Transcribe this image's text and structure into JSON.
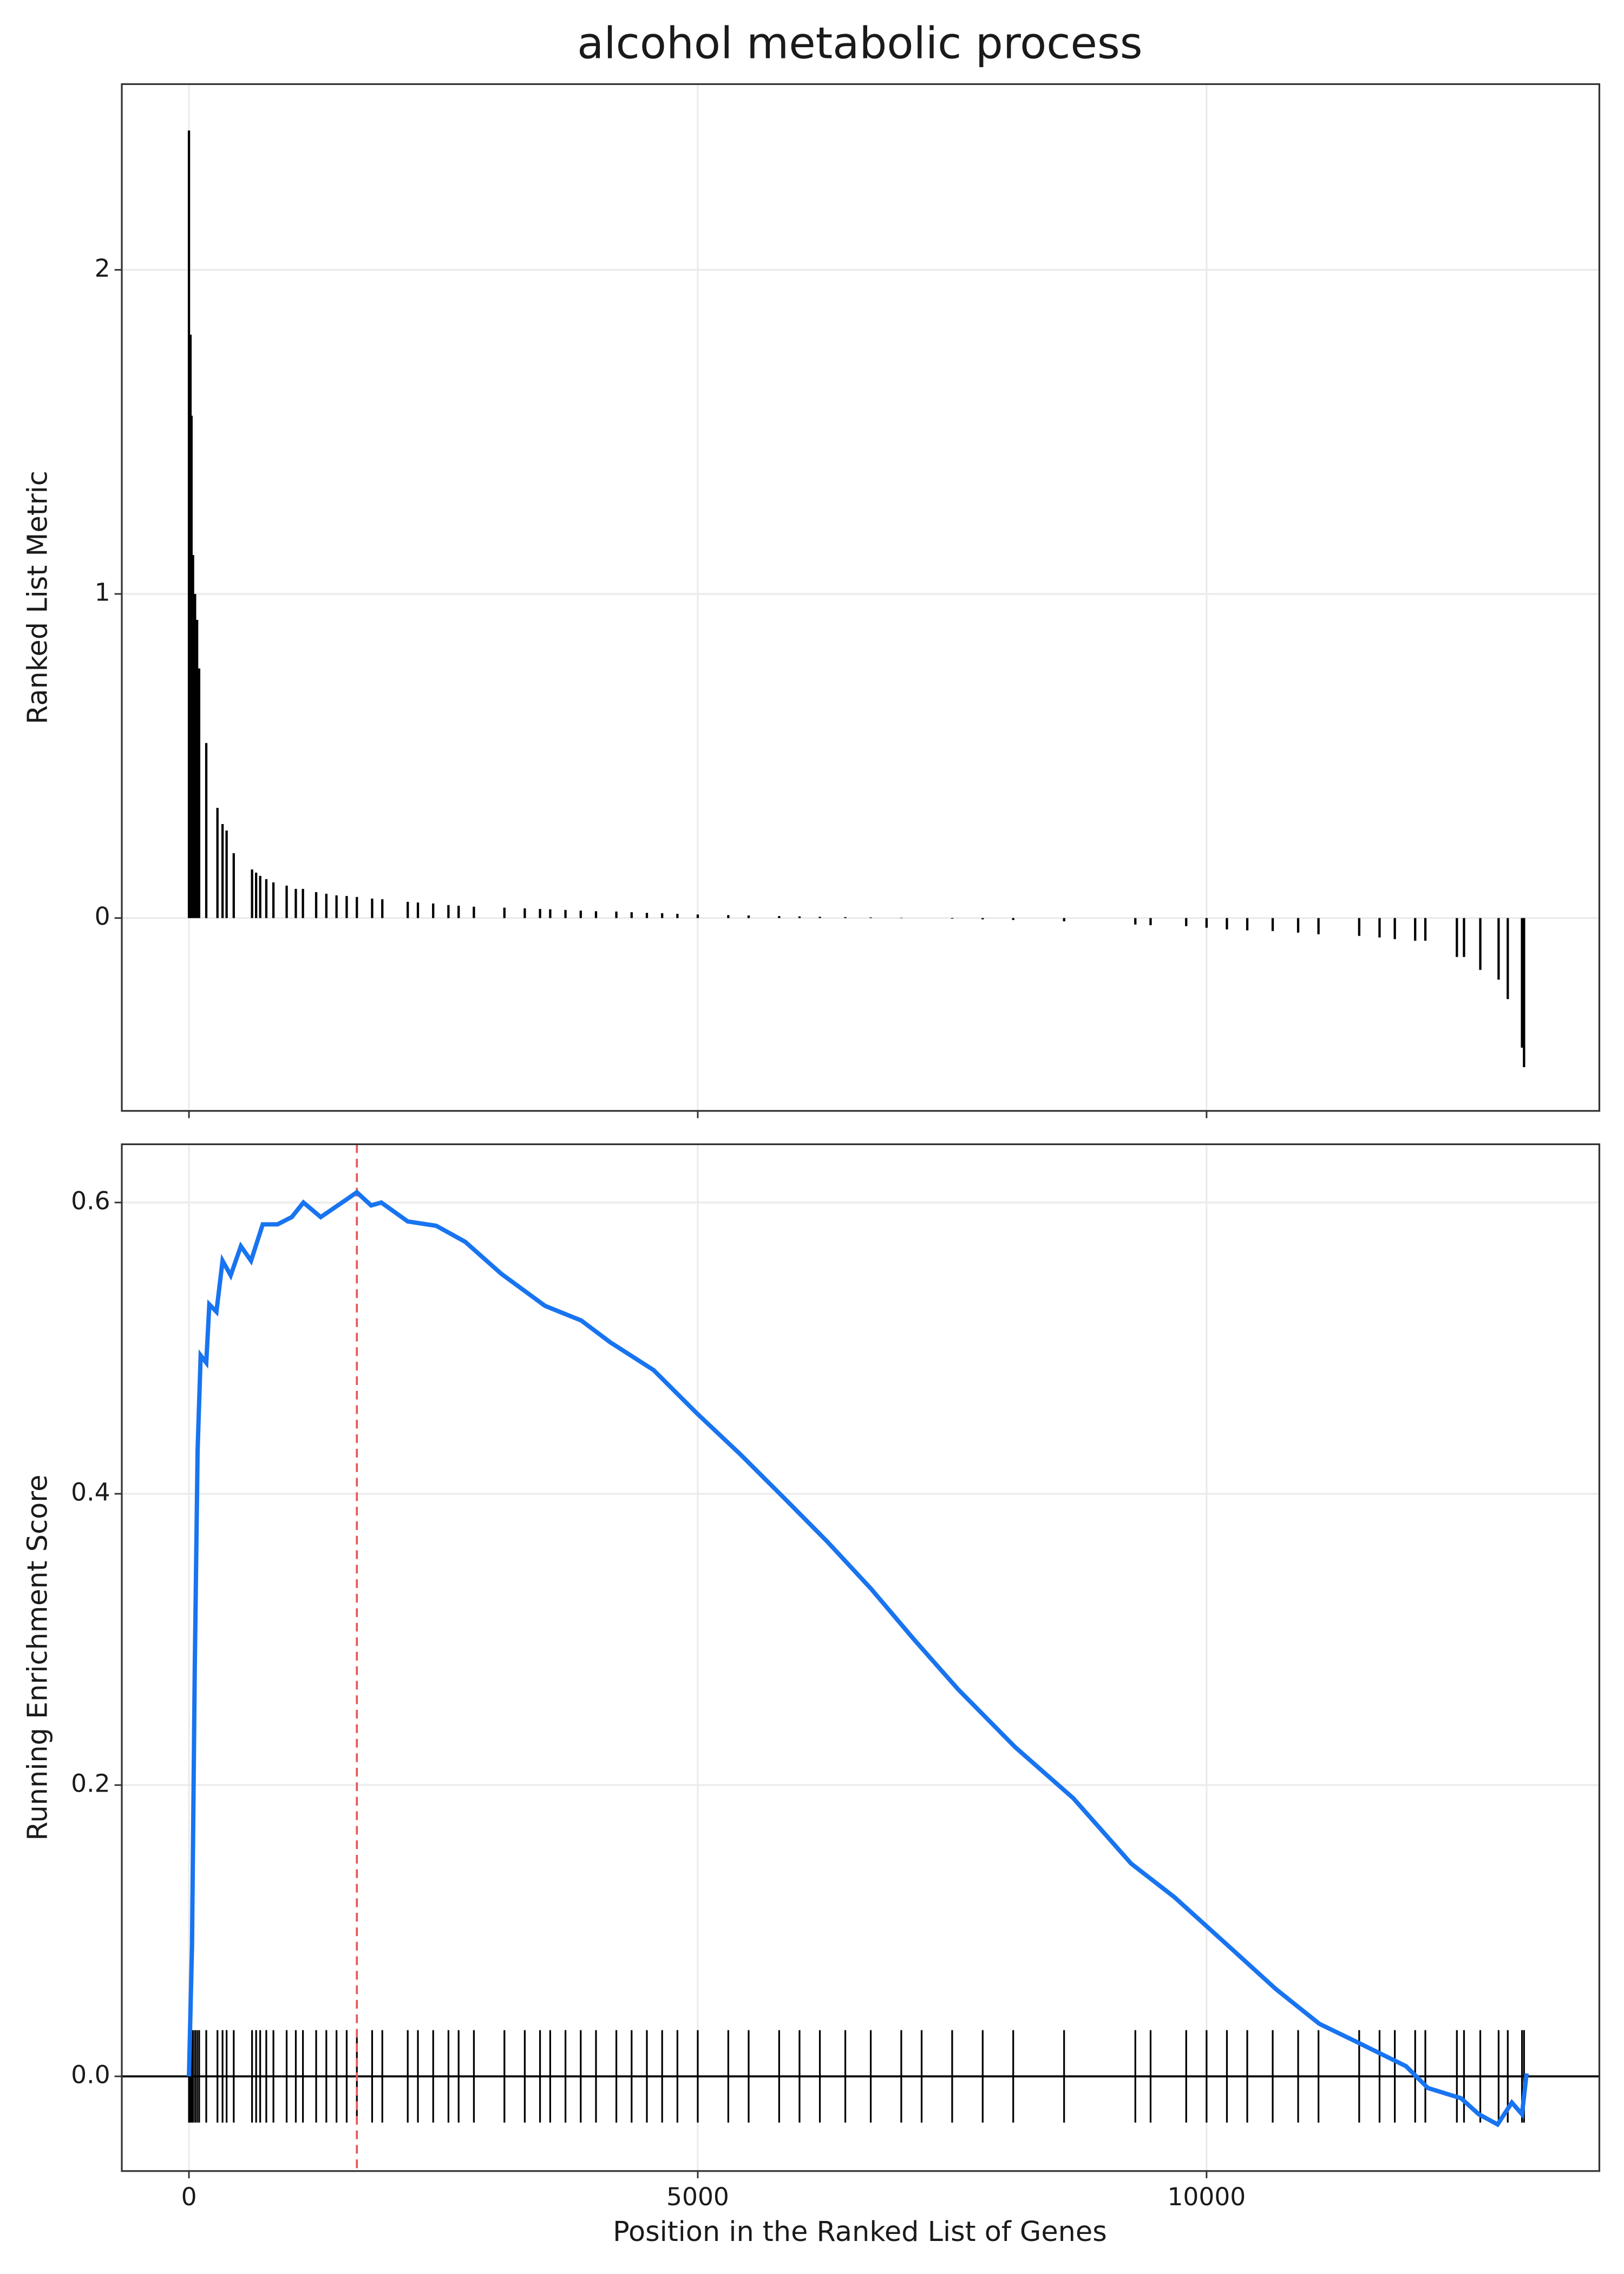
{
  "chart_data": [
    {
      "type": "bar",
      "title": "alcohol metabolic process",
      "y_label": "Ranked List Metric",
      "color": "#000000",
      "xlim": [
        -660,
        13860
      ],
      "ylim": [
        -0.595,
        2.573
      ],
      "yticks": [
        0,
        1,
        2
      ],
      "grid": true,
      "x": [
        0,
        15,
        25,
        40,
        60,
        80,
        100,
        170,
        280,
        330,
        370,
        440,
        620,
        660,
        700,
        760,
        830,
        960,
        1050,
        1120,
        1250,
        1350,
        1450,
        1550,
        1650,
        1800,
        1900,
        2150,
        2250,
        2400,
        2550,
        2650,
        2800,
        3100,
        3300,
        3450,
        3550,
        3700,
        3850,
        4000,
        4200,
        4350,
        4500,
        4650,
        4800,
        5000,
        5300,
        5500,
        5800,
        6000,
        6200,
        6450,
        6700,
        7000,
        7200,
        7500,
        7800,
        8100,
        8600,
        9300,
        9450,
        9800,
        10000,
        10200,
        10400,
        10650,
        10900,
        11100,
        11500,
        11700,
        11850,
        12050,
        12150,
        12460,
        12530,
        12690,
        12870,
        12960,
        13100,
        13120
      ],
      "values": [
        2.43,
        1.8,
        1.55,
        1.12,
        1.0,
        0.92,
        0.77,
        0.54,
        0.34,
        0.29,
        0.27,
        0.2,
        0.15,
        0.14,
        0.13,
        0.12,
        0.11,
        0.1,
        0.09,
        0.09,
        0.08,
        0.075,
        0.07,
        0.068,
        0.065,
        0.06,
        0.058,
        0.05,
        0.048,
        0.045,
        0.04,
        0.038,
        0.035,
        0.032,
        0.03,
        0.028,
        0.027,
        0.025,
        0.023,
        0.021,
        0.02,
        0.018,
        0.016,
        0.015,
        0.013,
        0.011,
        0.009,
        0.008,
        0.006,
        0.005,
        0.004,
        0.003,
        0.002,
        0.001,
        0,
        -0.002,
        -0.004,
        -0.006,
        -0.01,
        -0.02,
        -0.022,
        -0.025,
        -0.03,
        -0.035,
        -0.038,
        -0.04,
        -0.045,
        -0.05,
        -0.055,
        -0.06,
        -0.065,
        -0.07,
        -0.07,
        -0.12,
        -0.12,
        -0.16,
        -0.19,
        -0.25,
        -0.4,
        -0.46
      ]
    },
    {
      "type": "line",
      "x_label": "Position in the Ranked List of Genes",
      "y_label": "Running Enrichment Score",
      "color": "#1874f0",
      "xlim": [
        -660,
        13860
      ],
      "xticks": [
        0,
        5000,
        10000
      ],
      "ylim": [
        -0.065,
        0.64
      ],
      "yticks": [
        {
          "value": 0,
          "label": "0.0"
        },
        0.2,
        0.4,
        0.6
      ],
      "grid": true,
      "peak_x": 1650,
      "peak_color": "#e8585a",
      "x": [
        0,
        30,
        57,
        85,
        115,
        170,
        200,
        270,
        330,
        410,
        510,
        610,
        725,
        870,
        1010,
        1125,
        1295,
        1505,
        1650,
        1790,
        1890,
        2150,
        2430,
        2715,
        3070,
        3500,
        3855,
        4140,
        4565,
        4995,
        5420,
        5850,
        6275,
        6700,
        7125,
        7555,
        8120,
        8690,
        9260,
        9685,
        10255,
        10680,
        11110,
        11465,
        11960,
        12175,
        12500,
        12675,
        12860,
        13000,
        13100,
        13145
      ],
      "values": [
        0,
        0.09,
        0.28,
        0.43,
        0.495,
        0.49,
        0.53,
        0.525,
        0.56,
        0.55,
        0.57,
        0.56,
        0.585,
        0.585,
        0.59,
        0.6,
        0.59,
        0.6,
        0.607,
        0.598,
        0.6,
        0.587,
        0.584,
        0.573,
        0.551,
        0.529,
        0.519,
        0.504,
        0.485,
        0.455,
        0.427,
        0.397,
        0.367,
        0.335,
        0.3,
        0.266,
        0.226,
        0.191,
        0.146,
        0.123,
        0.087,
        0.06,
        0.036,
        0.024,
        0.007,
        -0.008,
        -0.015,
        -0.026,
        -0.033,
        -0.018,
        -0.026,
        0.002
      ]
    }
  ]
}
